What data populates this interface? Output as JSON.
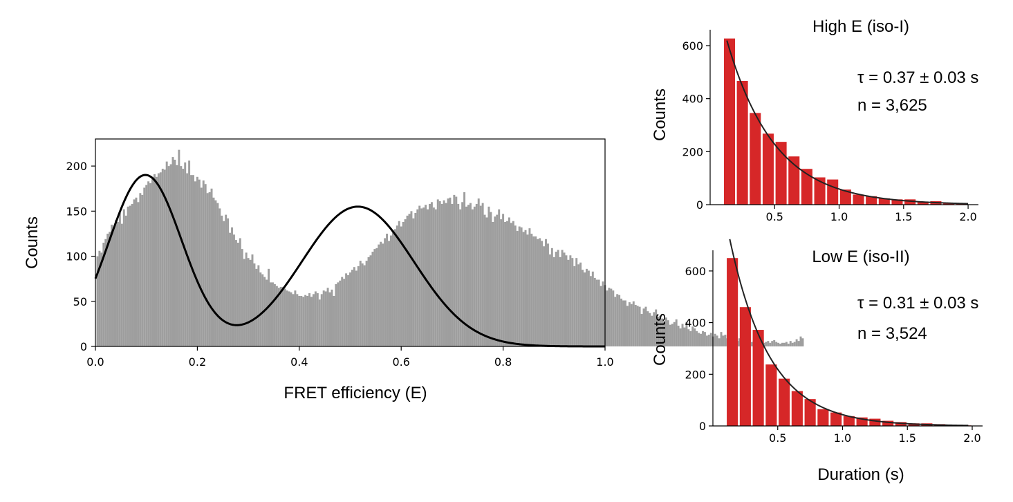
{
  "chart_data": [
    {
      "type": "bar",
      "subtype": "histogram-with-fit",
      "title": "",
      "xlabel": "FRET efficiency (E)",
      "ylabel": "Counts",
      "xlim": [
        0.0,
        1.0
      ],
      "ylim": [
        0,
        230
      ],
      "xticks": [
        "0.0",
        "0.2",
        "0.4",
        "0.6",
        "0.8",
        "1.0"
      ],
      "yticks": [
        "0",
        "50",
        "100",
        "150",
        "200"
      ],
      "bar_color": "#9e9e9e",
      "fit_color": "#000000",
      "bin_width": 0.004,
      "series": [
        {
          "x_start": 0.002,
          "values": [
            100,
            106,
            104,
            115,
            119,
            125,
            127,
            135,
            132,
            140,
            138,
            148,
            136,
            152,
            145,
            155,
            156,
            158,
            163,
            165,
            160,
            170,
            168,
            176,
            179,
            183,
            181,
            188,
            191,
            188,
            192,
            193,
            197,
            196,
            205,
            200,
            202,
            210,
            207,
            201,
            218,
            200,
            197,
            204,
            192,
            206,
            190,
            190,
            183,
            188,
            185,
            176,
            184,
            180,
            170,
            171,
            175,
            165,
            162,
            159,
            153,
            145,
            139,
            146,
            142,
            126,
            132,
            124,
            118,
            115,
            120,
            108,
            97,
            104,
            98,
            96,
            102,
            92,
            86,
            90,
            82,
            80,
            77,
            74,
            86,
            71,
            71,
            69,
            67,
            65,
            66,
            66,
            64,
            62,
            61,
            60,
            58,
            62,
            58,
            56,
            56,
            55,
            57,
            56,
            59,
            55,
            58,
            61,
            59,
            52,
            58,
            62,
            61,
            65,
            60,
            63,
            56,
            69,
            71,
            73,
            77,
            75,
            81,
            79,
            82,
            85,
            88,
            84,
            89,
            95,
            92,
            90,
            95,
            99,
            101,
            105,
            108,
            109,
            113,
            116,
            114,
            120,
            125,
            117,
            123,
            129,
            130,
            134,
            139,
            133,
            138,
            141,
            145,
            147,
            150,
            142,
            148,
            152,
            156,
            153,
            154,
            157,
            152,
            158,
            160,
            154,
            152,
            163,
            161,
            158,
            162,
            159,
            164,
            165,
            158,
            168,
            166,
            158,
            152,
            160,
            171,
            155,
            157,
            159,
            152,
            155,
            158,
            164,
            156,
            159,
            146,
            143,
            155,
            149,
            138,
            144,
            146,
            152,
            141,
            147,
            138,
            139,
            143,
            137,
            139,
            134,
            128,
            133,
            132,
            127,
            129,
            124,
            131,
            125,
            122,
            122,
            119,
            120,
            117,
            111,
            119,
            114,
            102,
            109,
            99,
            105,
            107,
            99,
            107,
            104,
            101,
            96,
            101,
            98,
            89,
            98,
            91,
            93,
            85,
            82,
            86,
            84,
            78,
            83,
            76,
            74,
            74,
            67,
            72,
            68,
            62,
            65,
            64,
            62,
            55,
            58,
            57,
            53,
            51,
            51,
            45,
            49,
            47,
            50,
            46,
            45,
            44,
            36,
            42,
            44,
            39,
            37,
            34,
            38,
            41,
            33,
            34,
            31,
            28,
            32,
            29,
            24,
            25,
            27,
            30,
            23,
            20,
            25,
            21,
            27,
            19,
            17,
            22,
            20,
            17,
            15,
            14,
            17,
            16,
            12,
            13,
            15,
            11,
            14,
            12,
            9,
            16,
            12,
            13,
            9,
            10,
            12,
            7,
            11,
            6,
            9,
            8,
            7,
            9,
            8,
            7,
            5,
            6,
            4,
            5,
            7,
            6,
            4,
            5,
            6,
            4,
            6,
            7,
            5,
            4,
            3,
            4,
            4,
            5,
            3,
            6,
            4,
            5,
            8,
            6,
            11,
            9
          ]
        }
      ],
      "fit": {
        "name": "",
        "components": [
          {
            "amplitude": 190,
            "mean": 0.098,
            "sigma": 0.072
          },
          {
            "amplitude": 155,
            "mean": 0.515,
            "sigma": 0.11
          }
        ]
      }
    },
    {
      "type": "bar",
      "subtype": "histogram-with-fit",
      "title": "High E (iso-I)",
      "xlabel": "",
      "ylabel": "Counts",
      "xlim": [
        0.0,
        2.08
      ],
      "ylim": [
        0,
        660
      ],
      "xticks": [
        "0.5",
        "1.0",
        "1.5",
        "2.0"
      ],
      "yticks": [
        "0",
        "200",
        "400",
        "600"
      ],
      "bar_color": "#d62728",
      "fit_color": "#222222",
      "annotations": [
        "τ = 0.37 ± 0.03 s",
        "n = 3,625"
      ],
      "categories": [
        0.15,
        0.25,
        0.35,
        0.45,
        0.55,
        0.65,
        0.75,
        0.85,
        0.95,
        1.05,
        1.15,
        1.25,
        1.35,
        1.45,
        1.55,
        1.65,
        1.75,
        1.85,
        1.95
      ],
      "values": [
        627,
        467,
        346,
        268,
        237,
        182,
        135,
        103,
        95,
        57,
        38,
        32,
        24,
        20,
        20,
        10,
        13,
        5,
        3
      ],
      "fit": {
        "type": "exponential",
        "tau": 0.37,
        "amplitude": 880,
        "x_from": 0.13,
        "x_to": 2.0
      }
    },
    {
      "type": "bar",
      "subtype": "histogram-with-fit",
      "title": "Low E (iso-II)",
      "xlabel": "Duration (s)",
      "ylabel": "Counts",
      "xlim": [
        0.0,
        2.08
      ],
      "ylim": [
        0,
        680
      ],
      "xticks": [
        "0.5",
        "1.0",
        "1.5",
        "2.0"
      ],
      "yticks": [
        "0",
        "200",
        "400",
        "600"
      ],
      "bar_color": "#d62728",
      "fit_color": "#222222",
      "annotations": [
        "τ = 0.31 ± 0.03 s",
        "n = 3,524"
      ],
      "categories": [
        0.15,
        0.25,
        0.35,
        0.45,
        0.55,
        0.65,
        0.75,
        0.85,
        0.95,
        1.05,
        1.15,
        1.25,
        1.35,
        1.45,
        1.55,
        1.65,
        1.75,
        1.85,
        1.95
      ],
      "values": [
        650,
        460,
        372,
        238,
        183,
        135,
        104,
        65,
        52,
        38,
        33,
        28,
        20,
        15,
        10,
        10,
        7,
        4,
        2
      ],
      "fit": {
        "type": "exponential",
        "tau": 0.31,
        "amplitude": 1100,
        "x_from": 0.13,
        "x_to": 1.97
      }
    }
  ]
}
